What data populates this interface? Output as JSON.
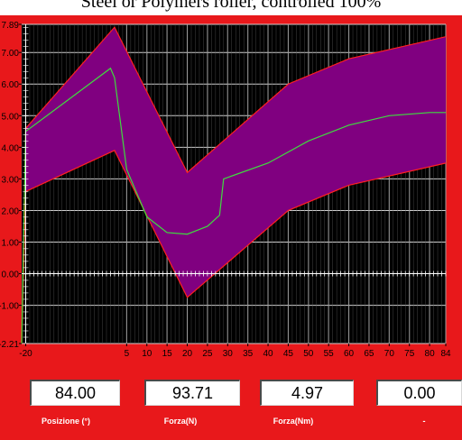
{
  "window": {
    "title": "Steel or Polymers roller, controlled 100%"
  },
  "colors": {
    "frame": "#e8181b",
    "plot_background": "#000000",
    "grid": "#d0d0d0",
    "band_fill": "#800080",
    "band_edge": "#ff2020",
    "mean_line": "#3fdc3f"
  },
  "chart_data": {
    "type": "area",
    "xlim": [
      -21,
      84
    ],
    "ylim": [
      -2.21,
      7.89
    ],
    "x_ticks": [
      -20,
      5,
      10,
      15,
      20,
      25,
      30,
      35,
      40,
      45,
      50,
      55,
      60,
      65,
      70,
      75,
      80,
      84
    ],
    "x_tick_labels": [
      "-20",
      "5",
      "10",
      "15",
      "20",
      "25",
      "30",
      "35",
      "40",
      "45",
      "50",
      "55",
      "60",
      "65",
      "70",
      "75",
      "80",
      "84"
    ],
    "y_ticks": [
      -2.21,
      -1.0,
      0.0,
      1.0,
      2.0,
      3.0,
      4.0,
      5.0,
      6.0,
      7.0,
      7.89
    ],
    "y_tick_labels": [
      "-2.21",
      "-1.00",
      "0.00",
      "1.00",
      "2.00",
      "3.00",
      "4.00",
      "5.00",
      "6.00",
      "7.00",
      "7.89"
    ],
    "grid": true,
    "series": [
      {
        "role": "upper_limit",
        "x": [
          -21,
          -20,
          2,
          20,
          45,
          60,
          84
        ],
        "y": [
          -2.21,
          4.6,
          7.8,
          3.2,
          6.0,
          6.8,
          7.5
        ]
      },
      {
        "role": "lower_limit",
        "x": [
          -21,
          -20,
          2,
          20,
          45,
          60,
          84
        ],
        "y": [
          -2.21,
          2.6,
          3.9,
          -0.75,
          2.0,
          2.8,
          3.5
        ]
      },
      {
        "role": "measured",
        "x": [
          -21,
          -20,
          1,
          2,
          5,
          10,
          15,
          20,
          25,
          28,
          29,
          40,
          50,
          60,
          70,
          80,
          84
        ],
        "y": [
          -2.21,
          4.5,
          6.5,
          6.2,
          3.3,
          1.8,
          1.3,
          1.25,
          1.5,
          1.85,
          3.0,
          3.5,
          4.2,
          4.7,
          5.0,
          5.1,
          5.1
        ]
      }
    ]
  },
  "readouts": [
    {
      "value": "84.00",
      "label": "Posizione (°)"
    },
    {
      "value": "93.71",
      "label": "Forza(N)"
    },
    {
      "value": "4.97",
      "label": "Forza(Nm)"
    },
    {
      "value": "0.00",
      "label": "-"
    }
  ]
}
